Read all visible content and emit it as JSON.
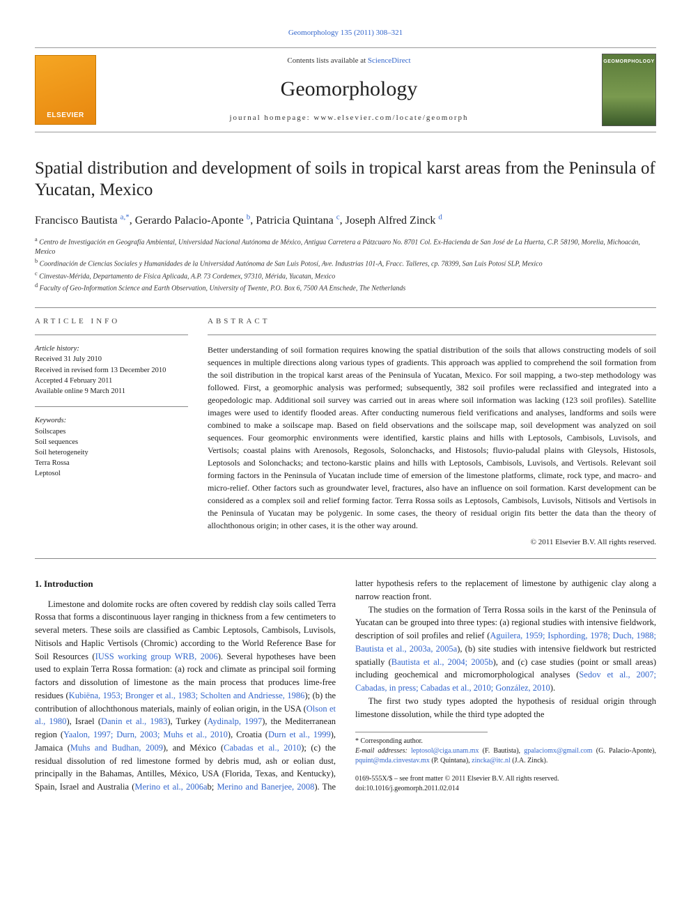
{
  "citation": "Geomorphology 135 (2011) 308–321",
  "contents_prefix": "Contents lists available at ",
  "contents_link": "ScienceDirect",
  "journal_display": "Geomorphology",
  "homepage_label": "journal homepage: www.elsevier.com/locate/geomorph",
  "publisher_name": "ELSEVIER",
  "cover_text": "GEOMORPHOLOGY",
  "title": "Spatial distribution and development of soils in tropical karst areas from the Peninsula of Yucatan, Mexico",
  "authors": [
    {
      "name": "Francisco Bautista",
      "marks": "a,*"
    },
    {
      "name": "Gerardo Palacio-Aponte",
      "marks": "b"
    },
    {
      "name": "Patricia Quintana",
      "marks": "c"
    },
    {
      "name": "Joseph Alfred Zinck",
      "marks": "d"
    }
  ],
  "affiliations": [
    {
      "m": "a",
      "t": "Centro de Investigación en Geografía Ambiental, Universidad Nacional Autónoma de México, Antigua Carretera a Pátzcuaro No. 8701 Col. Ex-Hacienda de San José de La Huerta, C.P. 58190, Morelia, Michoacán, Mexico"
    },
    {
      "m": "b",
      "t": "Coordinación de Ciencias Sociales y Humanidades de la Universidad Autónoma de San Luis Potosí, Ave. Industrias 101-A, Fracc. Talleres, cp. 78399, San Luis Potosí SLP, Mexico"
    },
    {
      "m": "c",
      "t": "Cinvestav-Mérida, Departamento de Física Aplicada, A.P. 73 Cordemex, 97310, Mérida, Yucatan, Mexico"
    },
    {
      "m": "d",
      "t": "Faculty of Geo-Information Science and Earth Observation, University of Twente, P.O. Box 6, 7500 AA Enschede, The Netherlands"
    }
  ],
  "info_label": "ARTICLE INFO",
  "abs_label": "ABSTRACT",
  "history_label": "Article history:",
  "history": [
    "Received 31 July 2010",
    "Received in revised form 13 December 2010",
    "Accepted 4 February 2011",
    "Available online 9 March 2011"
  ],
  "keywords_label": "Keywords:",
  "keywords": [
    "Soilscapes",
    "Soil sequences",
    "Soil heterogeneity",
    "Terra Rossa",
    "Leptosol"
  ],
  "abstract": "Better understanding of soil formation requires knowing the spatial distribution of the soils that allows constructing models of soil sequences in multiple directions along various types of gradients. This approach was applied to comprehend the soil formation from the soil distribution in the tropical karst areas of the Peninsula of Yucatan, Mexico. For soil mapping, a two-step methodology was followed. First, a geomorphic analysis was performed; subsequently, 382 soil profiles were reclassified and integrated into a geopedologic map. Additional soil survey was carried out in areas where soil information was lacking (123 soil profiles). Satellite images were used to identify flooded areas. After conducting numerous field verifications and analyses, landforms and soils were combined to make a soilscape map. Based on field observations and the soilscape map, soil development was analyzed on soil sequences. Four geomorphic environments were identified, karstic plains and hills with Leptosols, Cambisols, Luvisols, and Vertisols; coastal plains with Arenosols, Regosols, Solonchacks, and Histosols; fluvio-paludal plains with Gleysols, Histosols, Leptosols and Solonchacks; and tectono-karstic plains and hills with Leptosols, Cambisols, Luvisols, and Vertisols. Relevant soil forming factors in the Peninsula of Yucatan include time of emersion of the limestone platforms, climate, rock type, and macro- and micro-relief. Other factors such as groundwater level, fractures, also have an influence on soil formation. Karst development can be considered as a complex soil and relief forming factor. Terra Rossa soils as Leptosols, Cambisols, Luvisols, Nitisols and Vertisols in the Peninsula of Yucatan may be polygenic. In some cases, the theory of residual origin fits better the data than the theory of allochthonous origin; in other cases, it is the other way around.",
  "copyright": "© 2011 Elsevier B.V. All rights reserved.",
  "intro_heading": "1. Introduction",
  "intro": {
    "p1a": "Limestone and dolomite rocks are often covered by reddish clay soils called Terra Rossa that forms a discontinuous layer ranging in thickness from a few centimeters to several meters. These soils are classified as Cambic Leptosols, Cambisols, Luvisols, Nitisols and Haplic Vertisols (Chromic) according to the World Reference Base for Soil Resources (",
    "r1": "IUSS working group WRB, 2006",
    "p1b": "). Several hypotheses have been used to explain Terra Rossa formation: (a) rock and climate as principal soil forming factors and dissolution of limestone as the main process that produces lime-free residues (",
    "r2": "Kubiëna, 1953; Bronger et al., 1983; Scholten and Andriesse, 1986",
    "p1c": "); (b) the contribution of allochthonous materials, mainly of eolian origin, in the USA (",
    "r3": "Olson et al., 1980",
    "p1d": "), Israel (",
    "r4": "Danin et al., 1983",
    "p1e": "), Turkey (",
    "r5": "Aydinalp, 1997",
    "p1f": "), the Mediterranean region (",
    "r6": "Yaalon, 1997; Durn, 2003; Muhs et al., 2010",
    "p1g": "), Croatia (",
    "r7": "Durn et al., 1999",
    "p1h": "), Jamaica (",
    "r8": "Muhs and Budhan, 2009",
    "p1i": "), and México (",
    "r9": "Cabadas et al., 2010",
    "p1j": "); (c) the residual dissolution of red limestone formed by debris mud, ash or eolian dust, principally in the Bahamas, Antilles, México, USA (Florida, Texas, and Kentucky), Spain, Israel and Australia (",
    "r10": "Merino et al., 2006a",
    "p1k": "b; ",
    "r11": "Merino and Banerjee, 2008",
    "p1l": "). The latter hypothesis refers to the replacement of limestone by authigenic clay along a narrow reaction front.",
    "p2a": "The studies on the formation of Terra Rossa soils in the karst of the Peninsula of Yucatan can be grouped into three types: (a) regional studies with intensive fieldwork, description of soil profiles and relief (",
    "r12": "Aguilera, 1959; Isphording, 1978; Duch, 1988; Bautista et al., 2003a, 2005a",
    "p2b": "), (b) site studies with intensive fieldwork but restricted spatially (",
    "r13": "Bautista et al., 2004; 2005b",
    "p2c": "), and (c) case studies (point or small areas) including geochemical and micromorphological analyses (",
    "r14": "Sedov et al., 2007; Cabadas, in press; Cabadas et al., 2010; González, 2010",
    "p2d": ").",
    "p3": "The first two study types adopted the hypothesis of residual origin through limestone dissolution, while the third type adopted the"
  },
  "footnote": {
    "corr": "* Corresponding author.",
    "email_label": "E-mail addresses:",
    "emails": [
      {
        "addr": "leptosol@ciga.unam.mx",
        "who": "(F. Bautista)"
      },
      {
        "addr": "gpalaciomx@gmail.com",
        "who": "(G. Palacio-Aponte)"
      },
      {
        "addr": "pquint@mda.cinvestav.mx",
        "who": "(P. Quintana)"
      },
      {
        "addr": "zincka@itc.nl",
        "who": "(J.A. Zinck)."
      }
    ]
  },
  "bottom": {
    "line1": "0169-555X/$ – see front matter © 2011 Elsevier B.V. All rights reserved.",
    "line2": "doi:10.1016/j.geomorph.2011.02.014"
  }
}
